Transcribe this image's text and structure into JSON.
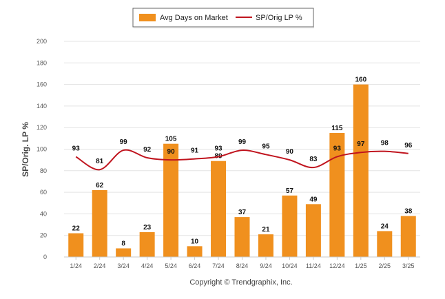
{
  "chart_data": {
    "type": "bar",
    "title": "",
    "ylabel": "SP/Orig. LP %",
    "xlabel": "",
    "ylim": [
      0,
      200
    ],
    "yticks": [
      0,
      20,
      40,
      60,
      80,
      100,
      120,
      140,
      160,
      180,
      200
    ],
    "grid": true,
    "legend_placement": "top-center",
    "categories": [
      "1/24",
      "2/24",
      "3/24",
      "4/24",
      "5/24",
      "6/24",
      "7/24",
      "8/24",
      "9/24",
      "10/24",
      "11/24",
      "12/24",
      "1/25",
      "2/25",
      "3/25"
    ],
    "series": [
      {
        "name": "Avg Days on Market",
        "kind": "bar",
        "color": "#f0901e",
        "values": [
          22,
          62,
          8,
          23,
          105,
          10,
          89,
          37,
          21,
          57,
          49,
          115,
          160,
          24,
          38
        ]
      },
      {
        "name": "SP/Orig LP %",
        "kind": "line",
        "color": "#c0141e",
        "values": [
          93,
          81,
          99,
          92,
          90,
          91,
          93,
          99,
          95,
          90,
          83,
          93,
          97,
          98,
          96
        ]
      }
    ]
  },
  "copyright": "Copyright © Trendgraphix, Inc."
}
